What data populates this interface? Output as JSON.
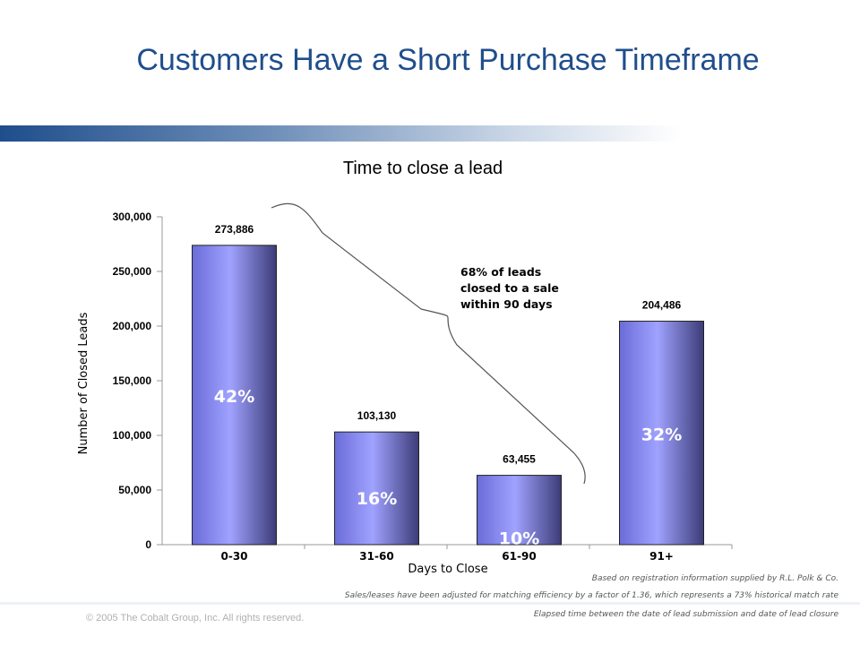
{
  "slide": {
    "title": "Customers Have a Short Purchase Timeframe",
    "copyright": "© 2005 The Cobalt Group, Inc. All rights reserved."
  },
  "footnotes": [
    "Based on registration information supplied by R.L. Polk & Co.",
    "Sales/leases have been adjusted for matching efficiency by a factor of 1.36, which represents a 73% historical match rate",
    "Elapsed time between the date of lead submission and date of lead closure"
  ],
  "annotation": [
    "68% of leads",
    "closed to a sale",
    "within 90 days"
  ],
  "colors": {
    "title": "#1f4e8c",
    "bar_light": "#9a9cff",
    "bar_dark": "#4a4a8c"
  },
  "chart_data": {
    "type": "bar",
    "title": "Time to close a lead",
    "xlabel": "Days to Close",
    "ylabel": "Number of Closed Leads",
    "categories": [
      "0-30",
      "31-60",
      "61-90",
      "91+"
    ],
    "values": [
      273886,
      103130,
      63455,
      204486
    ],
    "value_labels": [
      "273,886",
      "103,130",
      "63,455",
      "204,486"
    ],
    "percent_labels": [
      "42%",
      "16%",
      "10%",
      "32%"
    ],
    "ylim": [
      0,
      300000
    ],
    "yticks": [
      0,
      50000,
      100000,
      150000,
      200000,
      250000,
      300000
    ],
    "ytick_labels": [
      "0",
      "50,000",
      "100,000",
      "150,000",
      "200,000",
      "250,000",
      "300,000"
    ],
    "grid": false,
    "legend": "none"
  }
}
